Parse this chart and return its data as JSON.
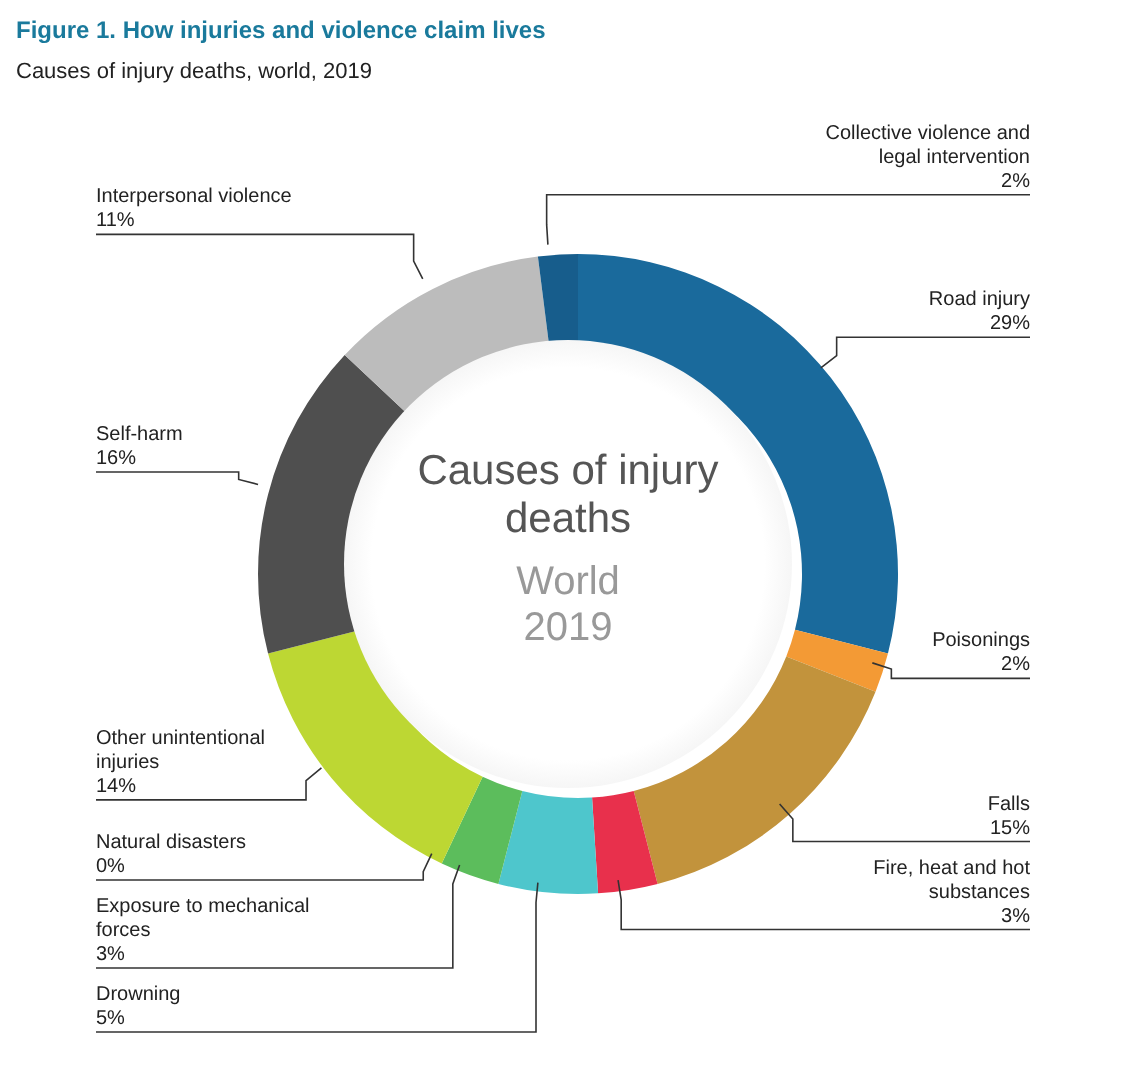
{
  "chart_data": {
    "type": "donut",
    "title": "Figure 1. How injuries and violence claim lives",
    "subtitle": "Causes of injury deaths, world, 2019",
    "categories": [
      "Road injury",
      "Poisonings",
      "Falls",
      "Fire, heat and hot substances",
      "Drowning",
      "Exposure to mechanical forces",
      "Natural disasters",
      "Other unintentional injuries",
      "Self-harm",
      "Interpersonal violence",
      "Collective violence and legal intervention"
    ],
    "values": [
      29,
      2,
      15,
      3,
      5,
      3,
      0,
      14,
      16,
      11,
      2
    ],
    "colors": [
      "#1a6a9c",
      "#f39a35",
      "#c2933c",
      "#e8304c",
      "#4ec6cc",
      "#5cbd5c",
      "#2f6b3c",
      "#bdd733",
      "#4f4f4f",
      "#bcbcbc",
      "#175d8c"
    ],
    "value_labels": [
      "29%",
      "2%",
      "15%",
      "3%",
      "5%",
      "3%",
      "0%",
      "14%",
      "16%",
      "11%",
      "2%"
    ],
    "annotations": [
      "Causes of injury deaths",
      "World 2019"
    ]
  }
}
